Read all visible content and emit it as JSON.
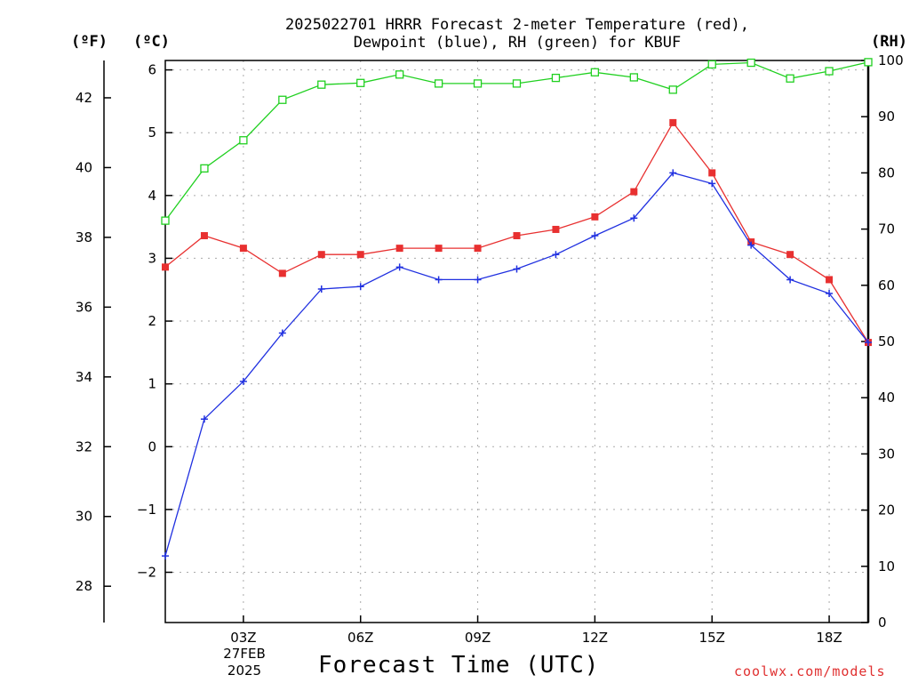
{
  "chart_data": {
    "type": "line",
    "title_line1": "2025022701 HRRR Forecast 2-meter Temperature (red),",
    "title_line2": "Dewpoint (blue), RH (green) for KBUF",
    "xlabel": "Forecast Time (UTC)",
    "date_labels": [
      "27FEB",
      "2025"
    ],
    "credit": "coolwx.com/models",
    "axes": {
      "fahrenheit": {
        "label": "(ºF)",
        "ticks": [
          28,
          30,
          32,
          34,
          36,
          38,
          40,
          42
        ]
      },
      "celsius": {
        "label": "(ºC)",
        "ylim": [
          -2.8,
          6.15
        ],
        "ticks": [
          -2,
          -1,
          0,
          1,
          2,
          3,
          4,
          5,
          6
        ]
      },
      "rh": {
        "label": "(RH)",
        "ylim": [
          0,
          100
        ],
        "ticks": [
          0,
          10,
          20,
          30,
          40,
          50,
          60,
          70,
          80,
          90,
          100
        ]
      },
      "x": {
        "xlim": [
          1,
          19
        ],
        "ticks": [
          3,
          6,
          9,
          12,
          15,
          18
        ],
        "tick_labels": [
          "03Z",
          "06Z",
          "09Z",
          "12Z",
          "15Z",
          "18Z"
        ]
      }
    },
    "grid": true,
    "x": [
      1,
      2,
      3,
      4,
      5,
      6,
      7,
      8,
      9,
      10,
      11,
      12,
      13,
      14,
      15,
      16,
      17,
      18,
      19
    ],
    "series": [
      {
        "name": "Temperature",
        "axis": "celsius",
        "color": "#e83030",
        "marker": "filled-square",
        "values": [
          2.86,
          3.36,
          3.16,
          2.76,
          3.06,
          3.06,
          3.16,
          3.16,
          3.16,
          3.36,
          3.46,
          3.66,
          4.06,
          5.16,
          4.36,
          3.26,
          3.06,
          2.66,
          1.66
        ]
      },
      {
        "name": "Dewpoint",
        "axis": "celsius",
        "color": "#2030e0",
        "marker": "plus",
        "values": [
          -1.74,
          0.44,
          1.04,
          1.81,
          2.51,
          2.55,
          2.86,
          2.66,
          2.66,
          2.83,
          3.06,
          3.36,
          3.64,
          4.36,
          4.19,
          3.21,
          2.66,
          2.44,
          1.66
        ]
      },
      {
        "name": "RH",
        "axis": "rh",
        "color": "#20d020",
        "marker": "open-square",
        "values": [
          71.5,
          80.8,
          85.8,
          93.0,
          95.7,
          96.0,
          97.5,
          95.9,
          95.9,
          95.9,
          96.9,
          97.9,
          97.0,
          94.8,
          99.3,
          99.6,
          96.8,
          98.1,
          99.7
        ]
      }
    ]
  }
}
